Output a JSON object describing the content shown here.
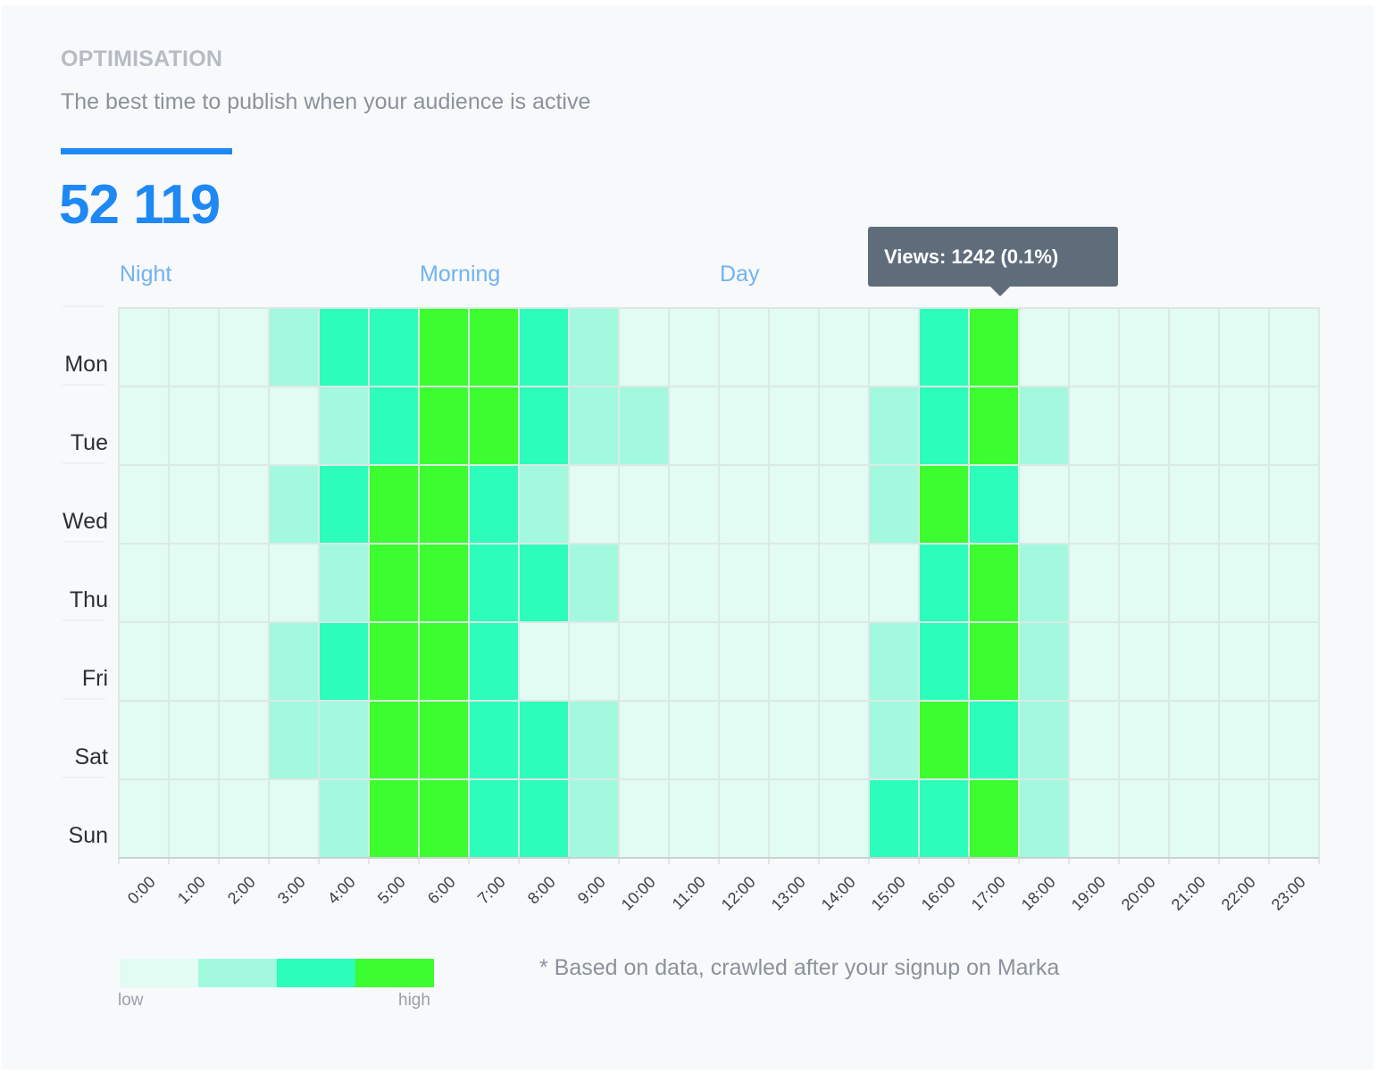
{
  "header": {
    "section_title": "OPTIMISATION",
    "subtitle": "The best time to publish when your audience is active",
    "total_views": "52 119"
  },
  "tooltip": {
    "text": "Views: 1242 (0.1%)"
  },
  "legend": {
    "low_label": "low",
    "high_label": "high"
  },
  "footnote": "* Based on data, crawled after your signup on Marka",
  "colors": {
    "accent": "#1e88f4",
    "levels": [
      "#e2fbf3",
      "#a2f9de",
      "#2cfdba",
      "#3bfd2f"
    ],
    "grid": "#dbe9e4"
  },
  "chart_data": {
    "type": "heatmap",
    "title": "The best time to publish when your audience is active",
    "periods": [
      "Night",
      "Morning",
      "Day"
    ],
    "days": [
      "Mon",
      "Tue",
      "Wed",
      "Thu",
      "Fri",
      "Sat",
      "Sun"
    ],
    "hours": [
      "0:00",
      "1:00",
      "2:00",
      "3:00",
      "4:00",
      "5:00",
      "6:00",
      "7:00",
      "8:00",
      "9:00",
      "10:00",
      "11:00",
      "12:00",
      "13:00",
      "14:00",
      "15:00",
      "16:00",
      "17:00",
      "18:00",
      "19:00",
      "20:00",
      "21:00",
      "22:00",
      "23:00"
    ],
    "levels": [
      "low",
      "",
      "",
      "high"
    ],
    "values": [
      [
        0,
        0,
        0,
        1,
        2,
        2,
        3,
        3,
        2,
        1,
        0,
        0,
        0,
        0,
        0,
        0,
        2,
        3,
        0,
        0,
        0,
        0,
        0,
        0
      ],
      [
        0,
        0,
        0,
        0,
        1,
        2,
        3,
        3,
        2,
        1,
        1,
        0,
        0,
        0,
        0,
        1,
        2,
        3,
        1,
        0,
        0,
        0,
        0,
        0
      ],
      [
        0,
        0,
        0,
        1,
        2,
        3,
        3,
        2,
        1,
        0,
        0,
        0,
        0,
        0,
        0,
        1,
        3,
        2,
        0,
        0,
        0,
        0,
        0,
        0
      ],
      [
        0,
        0,
        0,
        0,
        1,
        3,
        3,
        2,
        2,
        1,
        0,
        0,
        0,
        0,
        0,
        0,
        2,
        3,
        1,
        0,
        0,
        0,
        0,
        0
      ],
      [
        0,
        0,
        0,
        1,
        2,
        3,
        3,
        2,
        0,
        0,
        0,
        0,
        0,
        0,
        0,
        1,
        2,
        3,
        1,
        0,
        0,
        0,
        0,
        0
      ],
      [
        0,
        0,
        0,
        1,
        1,
        3,
        3,
        2,
        2,
        1,
        0,
        0,
        0,
        0,
        0,
        1,
        3,
        2,
        1,
        0,
        0,
        0,
        0,
        0
      ],
      [
        0,
        0,
        0,
        0,
        1,
        3,
        3,
        2,
        2,
        1,
        0,
        0,
        0,
        0,
        0,
        2,
        2,
        3,
        1,
        0,
        0,
        0,
        0,
        0
      ]
    ],
    "highlighted_cell": {
      "day": "Mon",
      "hour": "17:00",
      "views": 1242,
      "share": "0.1%"
    },
    "total_views": 52119
  }
}
